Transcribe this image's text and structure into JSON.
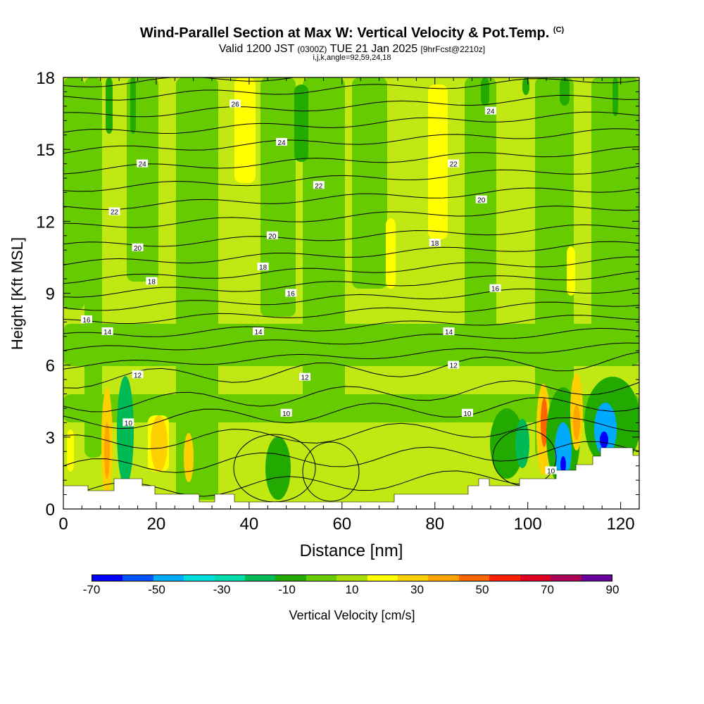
{
  "header": {
    "title": "Wind-Parallel Section at Max W: Vertical Velocity & Pot.Temp.",
    "copyright": "(C)",
    "valid_prefix": "Valid 1200 JST",
    "valid_utc": "(0300Z)",
    "valid_date": "TUE 21 Jan 2025",
    "forecast": "[9hrFcst@2210z]",
    "indices": "i,j,k,angle=92,59,24,18"
  },
  "chart_data": {
    "type": "heatmap",
    "xlabel": "Distance [nm]",
    "ylabel": "Height [Kft MSL]",
    "xlim": [
      0,
      124
    ],
    "ylim": [
      0,
      18
    ],
    "xticks": [
      0,
      20,
      40,
      60,
      80,
      100,
      120
    ],
    "yticks": [
      0,
      3,
      6,
      9,
      12,
      15,
      18
    ],
    "background_fill_color": "#c2e814",
    "contour_field": "Potential temperature",
    "contour_labels": [
      {
        "x": 37,
        "y": 16.9,
        "text": "26"
      },
      {
        "x": 47,
        "y": 15.3,
        "text": "24"
      },
      {
        "x": 17,
        "y": 14.4,
        "text": "24"
      },
      {
        "x": 92,
        "y": 16.6,
        "text": "24"
      },
      {
        "x": 55,
        "y": 13.5,
        "text": "22"
      },
      {
        "x": 84,
        "y": 14.4,
        "text": "22"
      },
      {
        "x": 11,
        "y": 12.4,
        "text": "22"
      },
      {
        "x": 90,
        "y": 12.9,
        "text": "20"
      },
      {
        "x": 45,
        "y": 11.4,
        "text": "20"
      },
      {
        "x": 16,
        "y": 10.9,
        "text": "20"
      },
      {
        "x": 80,
        "y": 11.1,
        "text": "18"
      },
      {
        "x": 43,
        "y": 10.1,
        "text": "18"
      },
      {
        "x": 19,
        "y": 9.5,
        "text": "18"
      },
      {
        "x": 49,
        "y": 9.0,
        "text": "16"
      },
      {
        "x": 93,
        "y": 9.2,
        "text": "16"
      },
      {
        "x": 5,
        "y": 7.9,
        "text": "16"
      },
      {
        "x": 9.5,
        "y": 7.4,
        "text": "14"
      },
      {
        "x": 42,
        "y": 7.4,
        "text": "14"
      },
      {
        "x": 83,
        "y": 7.4,
        "text": "14"
      },
      {
        "x": 16,
        "y": 5.6,
        "text": "12"
      },
      {
        "x": 52,
        "y": 5.5,
        "text": "12"
      },
      {
        "x": 84,
        "y": 6.0,
        "text": "12"
      },
      {
        "x": 14,
        "y": 3.6,
        "text": "10"
      },
      {
        "x": 48,
        "y": 4.0,
        "text": "10"
      },
      {
        "x": 87,
        "y": 4.0,
        "text": "10"
      },
      {
        "x": 105,
        "y": 1.6,
        "text": "10"
      }
    ],
    "colorbar": {
      "title": "Vertical Velocity [cm/s]",
      "tick_labels": [
        "-70",
        "-50",
        "-30",
        "-10",
        "10",
        "30",
        "50",
        "70",
        "90"
      ],
      "min": -70,
      "max": 90,
      "colors": [
        "#0000ff",
        "#0055ff",
        "#00aaff",
        "#00dddd",
        "#00ddaa",
        "#00bb55",
        "#22aa00",
        "#66cc00",
        "#aadd00",
        "#ffff00",
        "#ffd000",
        "#ffa500",
        "#ff6600",
        "#ff2200",
        "#dd0022",
        "#aa0055",
        "#660099"
      ]
    }
  }
}
